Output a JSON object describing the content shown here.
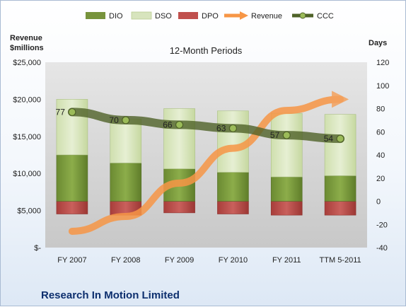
{
  "chart_data": {
    "type": "bar",
    "title": "12-Month Periods",
    "company": "Research In Motion Limited",
    "left_axis_title_line1": "Revenue",
    "left_axis_title_line2": "$millions",
    "right_axis_title": "Days",
    "categories": [
      "FY 2007",
      "FY 2008",
      "FY 2009",
      "FY 2010",
      "FY 2011",
      "TTM 5-2011"
    ],
    "left_ticks": [
      "$-",
      "$5,000",
      "$10,000",
      "$15,000",
      "$20,000",
      "$25,000"
    ],
    "left_tick_values": [
      0,
      5000,
      10000,
      15000,
      20000,
      25000
    ],
    "right_ticks": [
      "-40",
      "-20",
      "0",
      "20",
      "40",
      "60",
      "80",
      "100",
      "120"
    ],
    "right_tick_values": [
      -40,
      -20,
      0,
      20,
      40,
      60,
      80,
      100,
      120
    ],
    "ylim_days": [
      -40,
      120
    ],
    "series": [
      {
        "name": "DIO",
        "axis": "days",
        "values": [
          40,
          33,
          28,
          25,
          21,
          22
        ]
      },
      {
        "name": "DSO",
        "axis": "days",
        "values": [
          48,
          38,
          52,
          53,
          55,
          53
        ]
      },
      {
        "name": "DPO",
        "axis": "days",
        "values": [
          -11,
          -12,
          -10,
          -11,
          -12,
          -12
        ]
      },
      {
        "name": "Revenue",
        "axis": "revenue",
        "values": [
          2200,
          4200,
          8700,
          13400,
          18500,
          20000
        ]
      },
      {
        "name": "CCC",
        "axis": "days",
        "values": [
          77,
          70,
          66,
          63,
          57,
          54
        ]
      }
    ],
    "ccc_labels": [
      "77",
      "70",
      "66",
      "63",
      "57",
      "54"
    ],
    "grid": false,
    "legend_position": "top",
    "colors": {
      "DIO": "#77933c",
      "DSO": "#d7e4bd",
      "DPO": "#c0504d",
      "Revenue": "#f79646",
      "CCC": "#4f6228",
      "plot_bg": "#d9d9d9",
      "company_text": "#0d2f6e"
    }
  }
}
